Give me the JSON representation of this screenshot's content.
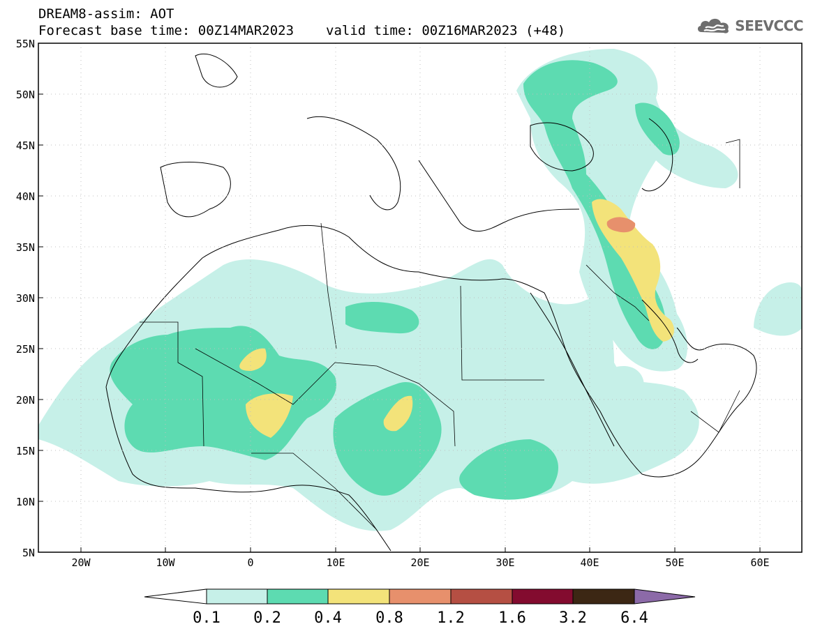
{
  "header": {
    "model": "DREAM8-assim: AOT",
    "base_time": "Forecast base time: 00Z14MAR2023",
    "valid_time": "valid time: 00Z16MAR2023 (+48)"
  },
  "logo": {
    "text": "SEEVCCC",
    "icon": "cloud-icon",
    "color": "#6e6e6e"
  },
  "map": {
    "lat_labels": [
      "55N",
      "50N",
      "45N",
      "40N",
      "35N",
      "30N",
      "25N",
      "20N",
      "15N",
      "10N",
      "5N"
    ],
    "lon_labels": [
      "20W",
      "10W",
      "0",
      "10E",
      "20E",
      "30E",
      "40E",
      "50E",
      "60E"
    ],
    "extent": {
      "lon_min": -25,
      "lon_max": 65,
      "lat_min": 5,
      "lat_max": 55
    },
    "grid": "dotted"
  },
  "colorbar": {
    "labels": [
      "0.1",
      "0.2",
      "0.4",
      "0.8",
      "1.2",
      "1.6",
      "3.2",
      "6.4"
    ],
    "colors": [
      "#c6f0e8",
      "#5ddbb1",
      "#f3e37a",
      "#e7906c",
      "#b54f43",
      "#830b2f",
      "#3c2714",
      "#8c6aa8"
    ]
  }
}
